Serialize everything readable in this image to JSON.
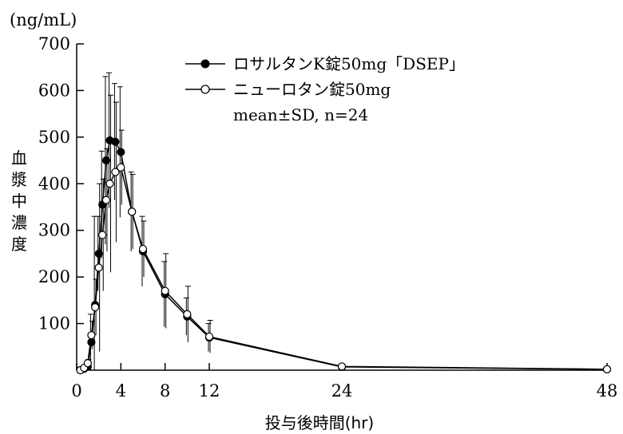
{
  "chart_data": {
    "type": "line",
    "unit_label": "(ng/mL)",
    "ylabel": "血漿中濃度",
    "xlabel": "投与後時間(hr)",
    "xlim": [
      0,
      48
    ],
    "ylim": [
      0,
      700
    ],
    "xticks": [
      0,
      4,
      8,
      12,
      24,
      48
    ],
    "yticks": [
      100,
      200,
      300,
      400,
      500,
      600,
      700
    ],
    "series": [
      {
        "name": "ロサルタンK錠50mg「DSEP」",
        "marker": "filled-circle",
        "x": [
          0.33,
          0.67,
          1.0,
          1.33,
          1.67,
          2.0,
          2.33,
          2.67,
          3.0,
          3.5,
          4.0,
          5.0,
          6.0,
          8.0,
          10.0,
          12.0,
          24.0,
          48.0
        ],
        "y": [
          0,
          3,
          8,
          60,
          140,
          250,
          355,
          450,
          493,
          490,
          468,
          340,
          255,
          163,
          115,
          70,
          7,
          2
        ],
        "err": [
          0,
          2,
          5,
          60,
          190,
          80,
          115,
          180,
          145,
          125,
          140,
          85,
          75,
          70,
          40,
          30,
          5,
          2
        ]
      },
      {
        "name": "ニューロタン錠50mg",
        "marker": "open-circle",
        "x": [
          0.33,
          0.67,
          1.0,
          1.33,
          1.67,
          2.0,
          2.33,
          2.67,
          3.0,
          3.5,
          4.0,
          5.0,
          6.0,
          8.0,
          10.0,
          12.0,
          24.0,
          48.0
        ],
        "y": [
          0,
          5,
          15,
          75,
          135,
          220,
          290,
          365,
          400,
          425,
          435,
          340,
          260,
          170,
          120,
          72,
          8,
          2
        ],
        "err": [
          0,
          2,
          8,
          30,
          60,
          180,
          120,
          110,
          190,
          150,
          80,
          80,
          60,
          80,
          60,
          35,
          4,
          2
        ]
      }
    ],
    "annotation": "mean±SD, n=24"
  }
}
